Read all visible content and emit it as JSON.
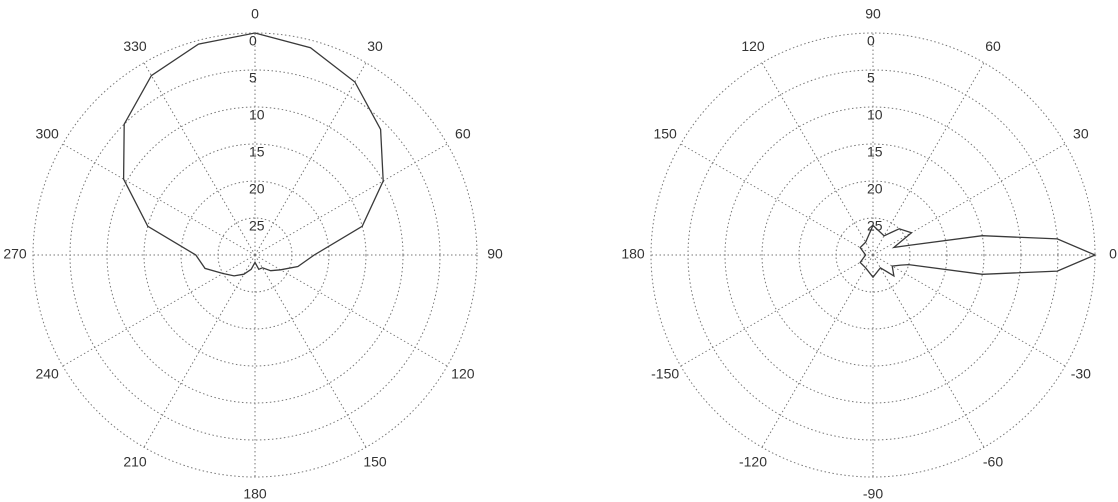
{
  "chart_data": [
    {
      "type": "polar",
      "theta_zero": "top",
      "theta_direction": "clockwise",
      "thetaticks": [
        0,
        30,
        60,
        90,
        120,
        150,
        180,
        210,
        240,
        270,
        300,
        330
      ],
      "rlim": [
        30,
        0
      ],
      "rticks": [
        0,
        5,
        10,
        15,
        20,
        25
      ],
      "grid": true,
      "series": [
        {
          "color": "#3a3a3a",
          "x": [
            0,
            15,
            30,
            45,
            60,
            75,
            90,
            105,
            120,
            135,
            150,
            165,
            180,
            195,
            210,
            225,
            240,
            255,
            270,
            285,
            300,
            315,
            330,
            345
          ],
          "values": [
            0,
            1,
            3,
            6,
            10,
            15,
            22,
            24,
            26,
            27,
            28,
            28,
            29,
            28,
            27,
            26,
            25,
            23,
            22,
            15,
            9.5,
            5,
            2,
            0.5
          ]
        }
      ]
    },
    {
      "type": "polar",
      "theta_zero": "right",
      "theta_direction": "counterclockwise",
      "thetaticks": [
        180,
        150,
        120,
        90,
        60,
        30,
        0,
        -30,
        -60,
        -90,
        -120,
        -150
      ],
      "rlim": [
        30,
        0
      ],
      "rticks": [
        0,
        5,
        10,
        15,
        20,
        25
      ],
      "grid": true,
      "series": [
        {
          "color": "#3a3a3a",
          "x": [
            -180,
            -150,
            -120,
            -90,
            -60,
            -45,
            -30,
            -20,
            -15,
            -10,
            -5,
            0,
            5,
            10,
            15,
            20,
            30,
            45,
            60,
            90,
            120,
            150,
            180
          ],
          "values": [
            29,
            28,
            28,
            27,
            28,
            26,
            27,
            26,
            25,
            15,
            5,
            0,
            5,
            15,
            25,
            27,
            24,
            25,
            27,
            26,
            28,
            28,
            29
          ]
        }
      ]
    }
  ]
}
